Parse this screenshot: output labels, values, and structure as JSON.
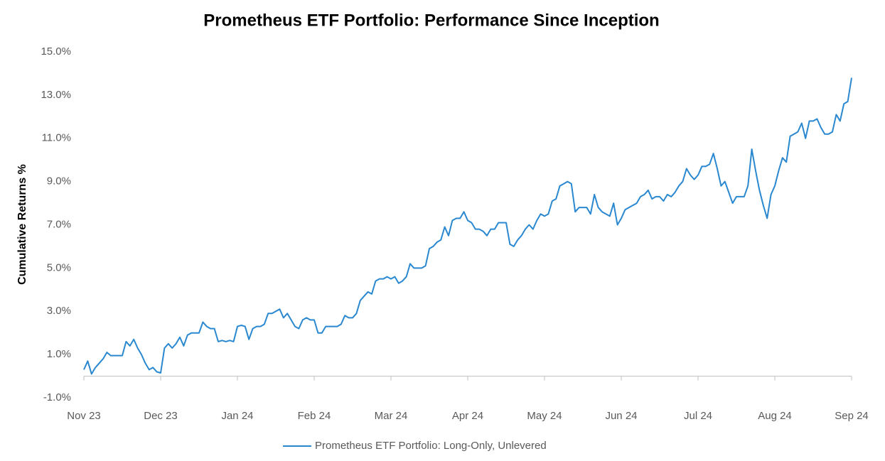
{
  "chart_data": {
    "type": "line",
    "title": "Prometheus ETF Portfolio: Performance Since Inception",
    "y_label": "Cumulative Returns %",
    "categories": [
      "Nov 23",
      null,
      null,
      null,
      null,
      null,
      null,
      null,
      null,
      null,
      null,
      null,
      null,
      null,
      null,
      null,
      null,
      null,
      null,
      null,
      "Dec 23",
      null,
      null,
      null,
      null,
      null,
      null,
      null,
      null,
      null,
      null,
      null,
      null,
      null,
      null,
      null,
      null,
      null,
      null,
      null,
      "Jan 24",
      null,
      null,
      null,
      null,
      null,
      null,
      null,
      null,
      null,
      null,
      null,
      null,
      null,
      null,
      null,
      null,
      null,
      null,
      null,
      "Feb 24",
      null,
      null,
      null,
      null,
      null,
      null,
      null,
      null,
      null,
      null,
      null,
      null,
      null,
      null,
      null,
      null,
      null,
      null,
      null,
      "Mar 24",
      null,
      null,
      null,
      null,
      null,
      null,
      null,
      null,
      null,
      null,
      null,
      null,
      null,
      null,
      null,
      null,
      null,
      null,
      null,
      "Apr 24",
      null,
      null,
      null,
      null,
      null,
      null,
      null,
      null,
      null,
      null,
      null,
      null,
      null,
      null,
      null,
      null,
      null,
      null,
      null,
      "May 24",
      null,
      null,
      null,
      null,
      null,
      null,
      null,
      null,
      null,
      null,
      null,
      null,
      null,
      null,
      null,
      null,
      null,
      null,
      null,
      "Jun 24",
      null,
      null,
      null,
      null,
      null,
      null,
      null,
      null,
      null,
      null,
      null,
      null,
      null,
      null,
      null,
      null,
      null,
      null,
      null,
      "Jul 24",
      null,
      null,
      null,
      null,
      null,
      null,
      null,
      null,
      null,
      null,
      null,
      null,
      null,
      null,
      null,
      null,
      null,
      null,
      null,
      "Aug 24",
      null,
      null,
      null,
      null,
      null,
      null,
      null,
      null,
      null,
      null,
      null,
      null,
      null,
      null,
      null,
      null,
      null,
      null,
      null,
      "Sep 24"
    ],
    "series": [
      {
        "name": "Prometheus ETF Portfolio: Long-Only, Unlevered",
        "color": "#2a88d0",
        "values": [
          0.3,
          0.7,
          0.1,
          0.4,
          0.6,
          0.8,
          1.1,
          0.95,
          0.95,
          0.95,
          0.95,
          1.6,
          1.4,
          1.7,
          1.3,
          1.0,
          0.6,
          0.3,
          0.4,
          0.2,
          0.15,
          1.3,
          1.5,
          1.3,
          1.5,
          1.8,
          1.4,
          1.9,
          2.0,
          2.0,
          2.0,
          2.5,
          2.3,
          2.2,
          2.2,
          1.6,
          1.65,
          1.6,
          1.65,
          1.6,
          2.3,
          2.35,
          2.3,
          1.7,
          2.2,
          2.3,
          2.3,
          2.4,
          2.9,
          2.9,
          3.0,
          3.1,
          2.7,
          2.9,
          2.6,
          2.3,
          2.2,
          2.6,
          2.7,
          2.6,
          2.6,
          2.0,
          2.0,
          2.3,
          2.3,
          2.3,
          2.3,
          2.4,
          2.8,
          2.7,
          2.7,
          2.9,
          3.5,
          3.7,
          3.9,
          3.8,
          4.4,
          4.5,
          4.5,
          4.6,
          4.5,
          4.6,
          4.3,
          4.4,
          4.6,
          5.2,
          5.0,
          5.0,
          5.0,
          5.1,
          5.9,
          6.0,
          6.2,
          6.3,
          6.9,
          6.5,
          7.2,
          7.3,
          7.3,
          7.6,
          7.2,
          7.1,
          6.8,
          6.8,
          6.7,
          6.5,
          6.8,
          6.8,
          7.1,
          7.1,
          7.1,
          6.1,
          6.0,
          6.3,
          6.5,
          6.8,
          7.0,
          6.8,
          7.2,
          7.5,
          7.4,
          7.5,
          8.1,
          8.2,
          8.8,
          8.9,
          9.0,
          8.9,
          7.6,
          7.8,
          7.8,
          7.8,
          7.5,
          8.4,
          7.8,
          7.6,
          7.5,
          7.4,
          8.0,
          7.0,
          7.3,
          7.7,
          7.8,
          7.9,
          8.0,
          8.3,
          8.4,
          8.6,
          8.2,
          8.3,
          8.3,
          8.1,
          8.4,
          8.3,
          8.5,
          8.8,
          9.0,
          9.6,
          9.3,
          9.1,
          9.3,
          9.7,
          9.7,
          9.8,
          10.3,
          9.6,
          8.8,
          9.0,
          8.5,
          8.0,
          8.3,
          8.3,
          8.3,
          8.8,
          10.5,
          9.5,
          8.6,
          7.9,
          7.3,
          8.4,
          8.8,
          9.5,
          10.1,
          9.9,
          11.1,
          11.2,
          11.3,
          11.7,
          11.0,
          11.8,
          11.8,
          11.9,
          11.5,
          11.2,
          11.2,
          11.3,
          12.1,
          11.8,
          12.6,
          12.7,
          13.8
        ]
      }
    ],
    "ylim": [
      -1,
      15
    ],
    "yticks": [
      {
        "value": -1,
        "label": "-1.0%"
      },
      {
        "value": 1,
        "label": "1.0%"
      },
      {
        "value": 3,
        "label": "3.0%"
      },
      {
        "value": 5,
        "label": "5.0%"
      },
      {
        "value": 7,
        "label": "7.0%"
      },
      {
        "value": 9,
        "label": "9.0%"
      },
      {
        "value": 11,
        "label": "11.0%"
      },
      {
        "value": 13,
        "label": "13.0%"
      },
      {
        "value": 15,
        "label": "15.0%"
      }
    ],
    "grid": false,
    "legend": "bottom"
  }
}
